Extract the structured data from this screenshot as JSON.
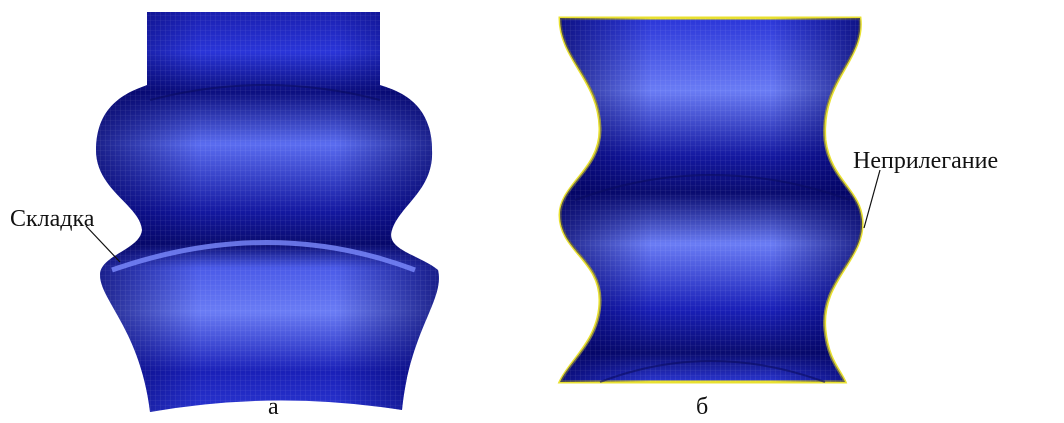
{
  "panels": [
    {
      "label": "а",
      "annotation": "Складка"
    },
    {
      "label": "б",
      "annotation": "Неприлегание"
    }
  ]
}
